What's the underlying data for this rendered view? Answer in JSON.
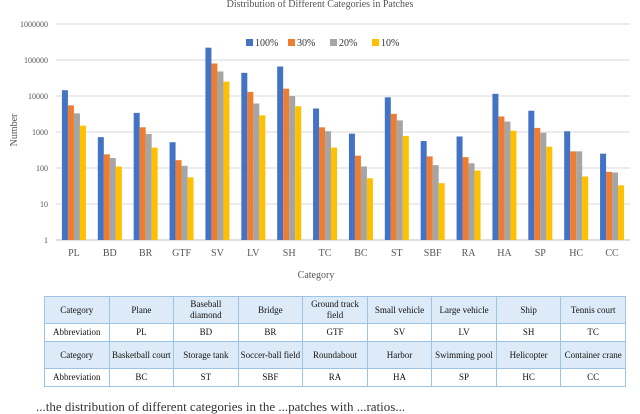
{
  "chart_data": {
    "type": "bar",
    "title": "Distribution of Different Categories in Patches",
    "xlabel": "Category",
    "ylabel": "Number",
    "yscale": "log",
    "ylim": [
      1,
      1000000
    ],
    "yticks": [
      "1",
      "10",
      "100",
      "1000",
      "10000",
      "100000",
      "1000000"
    ],
    "legend_position": "top",
    "grid": "horizontal",
    "categories": [
      "PL",
      "BD",
      "BR",
      "GTF",
      "SV",
      "LV",
      "SH",
      "TC",
      "BC",
      "ST",
      "SBF",
      "RA",
      "HA",
      "SP",
      "HC",
      "CC"
    ],
    "series": [
      {
        "name": "100%",
        "color": "#4472c4",
        "values": [
          14500,
          720,
          3400,
          520,
          220000,
          44000,
          66000,
          4500,
          900,
          9200,
          560,
          750,
          11500,
          3900,
          1050,
          250
        ]
      },
      {
        "name": "30%",
        "color": "#ed7d31",
        "values": [
          5500,
          240,
          1350,
          165,
          80000,
          13000,
          16000,
          1350,
          220,
          3200,
          210,
          200,
          2700,
          1300,
          290,
          78
        ]
      },
      {
        "name": "20%",
        "color": "#a5a5a5",
        "values": [
          3300,
          190,
          880,
          115,
          48000,
          6200,
          10000,
          1050,
          110,
          2100,
          120,
          135,
          1950,
          950,
          290,
          75
        ]
      },
      {
        "name": "10%",
        "color": "#ffc000",
        "values": [
          1500,
          110,
          370,
          55,
          25000,
          2900,
          5200,
          370,
          52,
          780,
          38,
          85,
          1080,
          390,
          58,
          33
        ]
      }
    ]
  },
  "table": {
    "rows": [
      {
        "kind": "name",
        "cells": [
          "Category",
          "Plane",
          "Baseball diamond",
          "Bridge",
          "Ground track field",
          "Small vehicle",
          "Large vehicle",
          "Ship",
          "Tennis court"
        ]
      },
      {
        "kind": "abbr",
        "cells": [
          "Abbreviation",
          "PL",
          "BD",
          "BR",
          "GTF",
          "SV",
          "LV",
          "SH",
          "TC"
        ]
      },
      {
        "kind": "name",
        "cells": [
          "Category",
          "Basketball court",
          "Storage tank",
          "Soccer-ball field",
          "Roundabout",
          "Harbor",
          "Swimming pool",
          "Helicopter",
          "Container crane"
        ]
      },
      {
        "kind": "abbr",
        "cells": [
          "Abbreviation",
          "BC",
          "ST",
          "SBF",
          "RA",
          "HA",
          "SP",
          "HC",
          "CC"
        ]
      }
    ]
  },
  "caption_fragment": "...the distribution of different categories in the ...patches with ...ratios..."
}
